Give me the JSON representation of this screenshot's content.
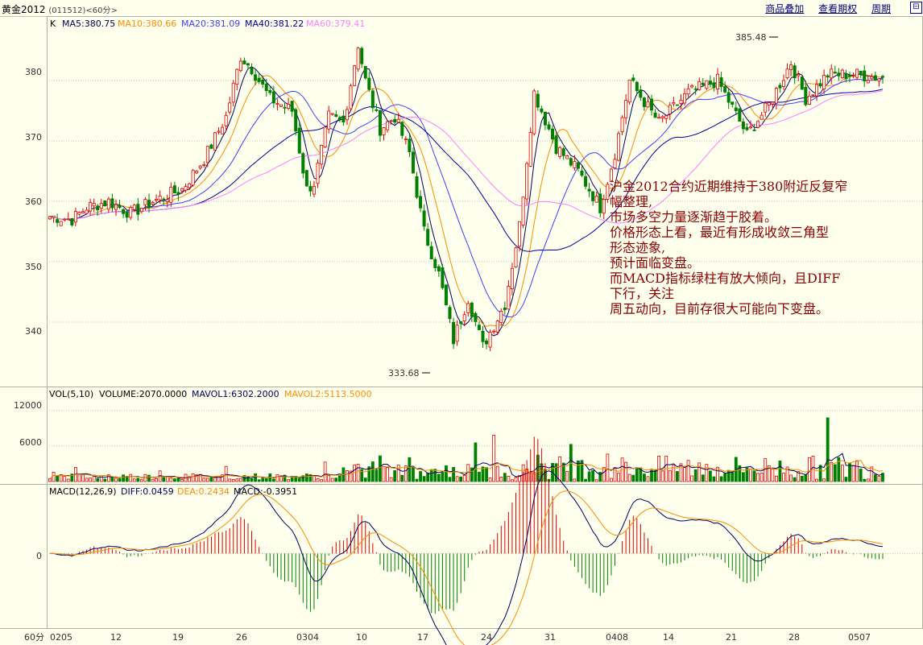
{
  "header": {
    "instrument": "黄金2012",
    "code_period": "(011512)<60分>",
    "links": [
      "商品叠加",
      "查看期权",
      "周期"
    ],
    "corner_icon": "restore-icon"
  },
  "main_panel": {
    "legend": {
      "prefix": "K",
      "ma5": "MA5:380.75",
      "ma10": "MA10:380.66",
      "ma20": "MA20:381.09",
      "ma40": "MA40:381.22",
      "ma60": "MA60:379.41"
    },
    "high_label": "385.48",
    "low_label": "333.68"
  },
  "vol_panel": {
    "legend": {
      "title": "VOL(5,10)",
      "volume": "VOLUME:2070.0000",
      "mavol1": "MAVOL1:6302.2000",
      "mavol2": "MAVOL2:5113.5000"
    }
  },
  "macd_panel": {
    "legend": {
      "title": "MACD(12,26,9)",
      "diff": "DIFF:0.0459",
      "dea": "DEA:0.2434",
      "macd": "MACD:-0.3951"
    }
  },
  "axis": {
    "period_label": "60分",
    "price_ticks": [
      "380",
      "370",
      "360",
      "350",
      "340"
    ],
    "vol_ticks": [
      "12000",
      "6000"
    ],
    "macd_ticks": [
      "0"
    ],
    "x_labels": [
      "0205",
      "12",
      "19",
      "26",
      "0304",
      "10",
      "17",
      "24",
      "31",
      "0408",
      "14",
      "21",
      "28",
      "0507"
    ]
  },
  "annotation": [
    "沪金2012合约近期维持于380附近反复窄",
    "幅整理,",
    "市场多空力量逐渐趋于胶着。",
    "价格形态上看，最近有形成收敛三角型",
    "形态迹象,",
    "预计面临变盘。",
    "而MACD指标绿柱有放大倾向，且DIFF",
    "下行，关注",
    "周五动向，目前存很大可能向下变盘。"
  ],
  "colors": {
    "up": "#e00000",
    "down": "#008000",
    "ma5": "#000060",
    "ma10": "#ff8c00",
    "ma20": "#4040ff",
    "ma40": "#0000a0",
    "ma60": "#ff80ff",
    "annotation": "#8b0000"
  },
  "chart_data": {
    "type": "candlestick",
    "ylim": [
      332,
      388
    ],
    "anchors": [
      [
        0,
        357.5
      ],
      [
        6,
        357
      ],
      [
        10,
        359
      ],
      [
        16,
        360
      ],
      [
        22,
        358
      ],
      [
        28,
        360
      ],
      [
        36,
        362
      ],
      [
        42,
        367
      ],
      [
        48,
        374
      ],
      [
        52,
        384
      ],
      [
        55,
        382
      ],
      [
        60,
        377
      ],
      [
        66,
        375
      ],
      [
        70,
        362
      ],
      [
        72,
        363
      ],
      [
        76,
        374
      ],
      [
        80,
        373
      ],
      [
        84,
        386
      ],
      [
        86,
        380
      ],
      [
        90,
        372
      ],
      [
        94,
        374
      ],
      [
        98,
        368
      ],
      [
        102,
        355
      ],
      [
        106,
        348
      ],
      [
        110,
        337
      ],
      [
        114,
        344
      ],
      [
        118,
        336
      ],
      [
        124,
        343
      ],
      [
        128,
        356
      ],
      [
        132,
        378
      ],
      [
        138,
        369
      ],
      [
        144,
        365
      ],
      [
        150,
        359
      ],
      [
        154,
        368
      ],
      [
        158,
        380
      ],
      [
        166,
        373
      ],
      [
        174,
        378
      ],
      [
        182,
        380
      ],
      [
        190,
        371
      ],
      [
        196,
        376
      ],
      [
        202,
        383
      ],
      [
        206,
        377
      ],
      [
        212,
        381
      ],
      [
        220,
        381
      ],
      [
        226,
        380.5
      ]
    ],
    "candles": 228,
    "volume": {
      "ylim": [
        0,
        14000
      ],
      "ticks": [
        6000,
        12000
      ],
      "ma": [
        "MAVOL1",
        "MAVOL2"
      ]
    },
    "macd": {
      "ylim": [
        -2.6,
        2.0
      ],
      "ticks": [
        0
      ]
    }
  }
}
